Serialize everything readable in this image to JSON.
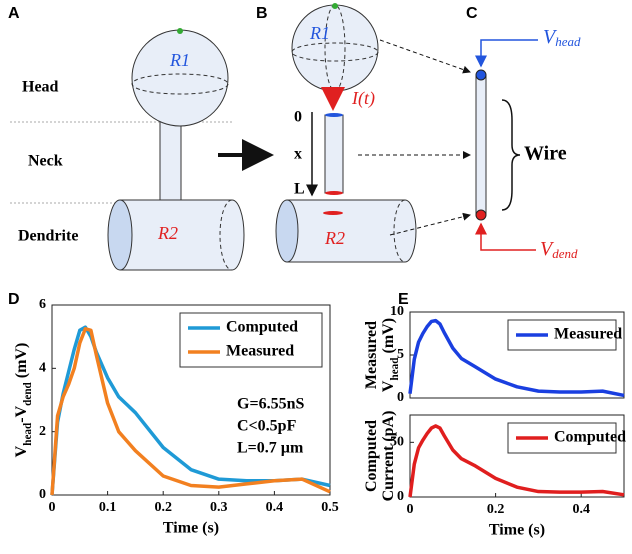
{
  "figure": {
    "panels": [
      "A",
      "B",
      "C",
      "D",
      "E"
    ],
    "panel_a": {
      "regions": [
        "Head",
        "Neck",
        "Dendrite"
      ],
      "resistors": [
        "R1",
        "R2"
      ]
    },
    "panel_b": {
      "resistors": [
        "R1",
        "R2"
      ],
      "current": "I(t)",
      "positions": [
        "0",
        "x",
        "L"
      ]
    },
    "panel_c": {
      "v_head": [
        "V",
        "head"
      ],
      "wire": "Wire",
      "v_dend": [
        "V",
        "dend"
      ]
    }
  },
  "chart_data": [
    {
      "type": "line",
      "xlabel": "Time (s)",
      "ylabel": [
        [
          "V",
          "head",
          "-V",
          "dend",
          " (mV)"
        ]
      ],
      "annotations": [
        "G=6.55nS",
        "C<0.5pF",
        "L=0.7 µm"
      ],
      "x": [
        0,
        0.01,
        0.02,
        0.03,
        0.04,
        0.05,
        0.06,
        0.07,
        0.08,
        0.1,
        0.12,
        0.15,
        0.2,
        0.25,
        0.3,
        0.35,
        0.4,
        0.45,
        0.5
      ],
      "series": [
        {
          "name": "Computed",
          "color": "#1f9ad6",
          "values": [
            0,
            2.3,
            3.2,
            3.9,
            4.6,
            5.2,
            5.3,
            5.0,
            4.5,
            3.7,
            3.1,
            2.6,
            1.5,
            0.8,
            0.5,
            0.45,
            0.45,
            0.5,
            0.3
          ]
        },
        {
          "name": "Measured",
          "color": "#f28020",
          "values": [
            0,
            2.5,
            3.1,
            3.5,
            4.0,
            4.8,
            5.25,
            5.2,
            4.4,
            2.9,
            2.0,
            1.4,
            0.6,
            0.3,
            0.25,
            0.35,
            0.45,
            0.5,
            0.1
          ]
        }
      ],
      "xlim": [
        0,
        0.5
      ],
      "xticks": [
        0,
        0.1,
        0.2,
        0.3,
        0.4,
        0.5
      ],
      "ylim": [
        0,
        6
      ],
      "yticks": [
        0,
        2,
        4,
        6
      ],
      "grid": false,
      "legend": "upper right"
    },
    {
      "type": "line",
      "ylabel": [
        [
          "Measured"
        ],
        [
          "V",
          "head",
          " (mV)"
        ]
      ],
      "x": [
        0,
        0.01,
        0.02,
        0.03,
        0.04,
        0.05,
        0.06,
        0.07,
        0.08,
        0.1,
        0.12,
        0.15,
        0.2,
        0.25,
        0.3,
        0.35,
        0.4,
        0.45,
        0.5
      ],
      "series": [
        {
          "name": "Measured",
          "color": "#1a3fe0",
          "values": [
            0.5,
            4.5,
            6.5,
            7.5,
            8.3,
            8.9,
            9.0,
            8.6,
            7.6,
            5.8,
            4.6,
            3.7,
            2.2,
            1.3,
            0.8,
            0.7,
            0.7,
            0.8,
            0.3
          ]
        }
      ],
      "xlim": [
        0,
        0.5
      ],
      "ylim": [
        0,
        10
      ],
      "yticks": [
        0,
        5,
        10
      ],
      "grid": false,
      "legend": "upper right"
    },
    {
      "type": "line",
      "xlabel": "Time (s)",
      "ylabel": [
        [
          "Computed"
        ],
        [
          "Current (pA)"
        ]
      ],
      "x": [
        0,
        0.01,
        0.02,
        0.03,
        0.04,
        0.05,
        0.06,
        0.07,
        0.08,
        0.1,
        0.12,
        0.15,
        0.2,
        0.25,
        0.3,
        0.35,
        0.4,
        0.45,
        0.5
      ],
      "series": [
        {
          "name": "Computed",
          "color": "#e01e1e",
          "values": [
            0,
            30,
            45,
            52,
            58,
            63,
            65,
            63,
            56,
            43,
            35,
            29,
            17,
            9,
            5,
            4.5,
            4.5,
            5,
            2
          ]
        }
      ],
      "xlim": [
        0,
        0.5
      ],
      "xticks": [
        0,
        0.2,
        0.4
      ],
      "ylim": [
        0,
        75
      ],
      "yticks": [
        0,
        50
      ],
      "grid": false,
      "legend": "upper right"
    }
  ]
}
